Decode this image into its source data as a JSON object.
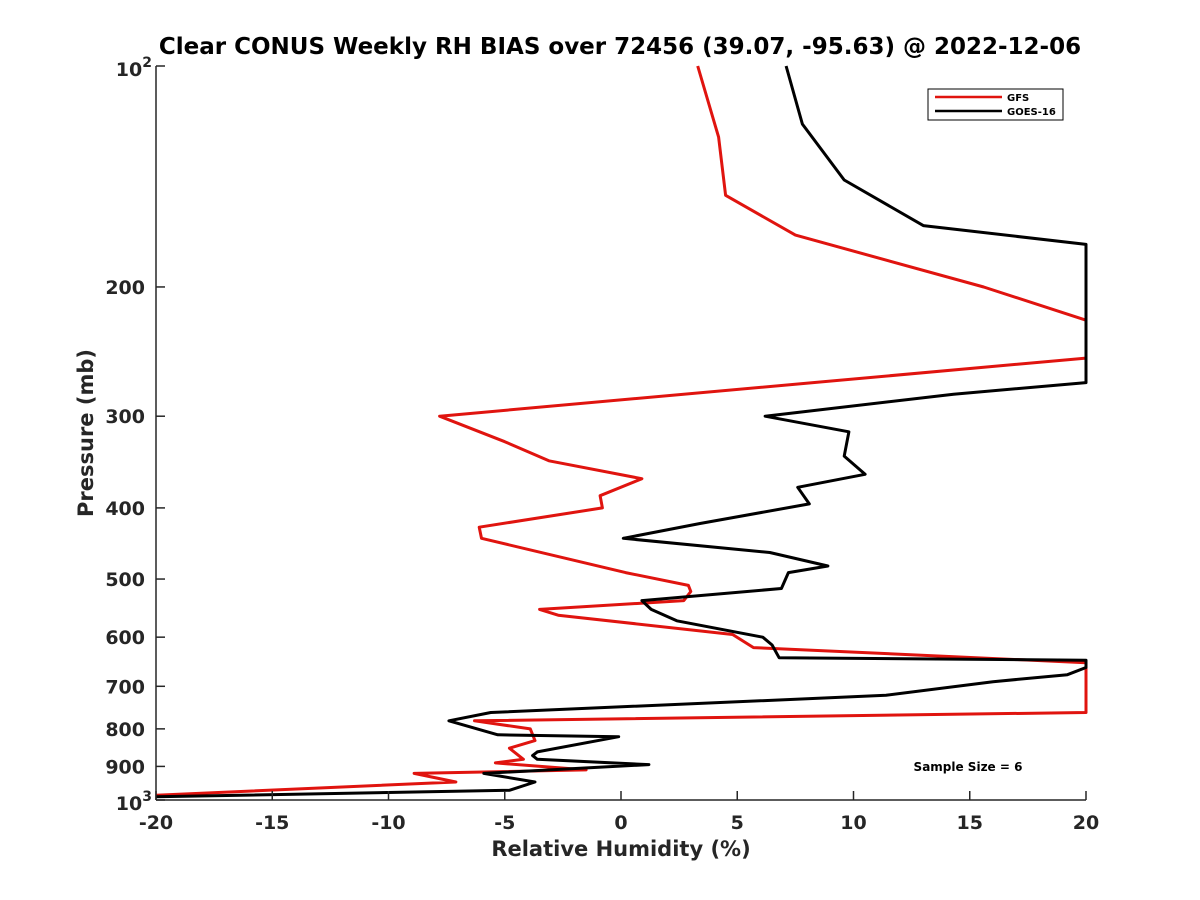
{
  "chart_data": {
    "type": "line",
    "title": "Clear CONUS Weekly RH BIAS over 72456 (39.07, -95.63) @ 2022-12-06",
    "xlabel": "Relative Humidity (%)",
    "ylabel": "Pressure (mb)",
    "xlim": [
      -20,
      20
    ],
    "ylim": [
      100,
      1000
    ],
    "yscale": "log",
    "y_reversed": true,
    "grid": false,
    "legend_position": "top-right",
    "x_ticks": [
      -20,
      -15,
      -10,
      -5,
      0,
      5,
      10,
      15,
      20
    ],
    "x_tick_labels": [
      "-20",
      "-15",
      "-10",
      "-5",
      "0",
      "5",
      "10",
      "15",
      "20"
    ],
    "y_ticks": [
      100,
      200,
      300,
      400,
      500,
      600,
      700,
      800,
      900,
      1000
    ],
    "y_tick_labels": [
      {
        "value": 100,
        "base": "10",
        "exp": "2"
      },
      {
        "value": 200,
        "base": "200",
        "exp": ""
      },
      {
        "value": 300,
        "base": "300",
        "exp": ""
      },
      {
        "value": 400,
        "base": "400",
        "exp": ""
      },
      {
        "value": 500,
        "base": "500",
        "exp": ""
      },
      {
        "value": 600,
        "base": "600",
        "exp": ""
      },
      {
        "value": 700,
        "base": "700",
        "exp": ""
      },
      {
        "value": 800,
        "base": "800",
        "exp": ""
      },
      {
        "value": 900,
        "base": "900",
        "exp": ""
      },
      {
        "value": 1000,
        "base": "10",
        "exp": "3"
      }
    ],
    "annotation": "Sample Size = 6",
    "series": [
      {
        "name": "GFS",
        "color": "#e0140f",
        "x": [
          3.3,
          4.2,
          4.5,
          7.5,
          15.6,
          20,
          20,
          -7.8,
          -5,
          -3.1,
          0.9,
          -0.9,
          -0.8,
          -6.1,
          -6,
          0.2,
          2.9,
          3.0,
          2.7,
          -3.5,
          -2.7,
          4.8,
          5.7,
          20,
          20,
          -6.3,
          -3.9,
          -3.7,
          -4.8,
          -4.2,
          -5.4,
          -1.5,
          -8.9,
          -7.1,
          -20
        ],
        "y": [
          100,
          125,
          150,
          170,
          200,
          222,
          250,
          300,
          325,
          345,
          365,
          385,
          400,
          425,
          440,
          490,
          510,
          520,
          535,
          550,
          560,
          595,
          620,
          650,
          760,
          780,
          800,
          830,
          850,
          880,
          890,
          910,
          920,
          945,
          985
        ]
      },
      {
        "name": "GOES-16",
        "color": "#000000",
        "x": [
          7.1,
          7.8,
          9.6,
          13,
          20,
          20,
          14.3,
          6.2,
          9.8,
          9.6,
          10.5,
          7.6,
          8.1,
          3.4,
          0.1,
          6.4,
          8.9,
          7.2,
          6.9,
          0.9,
          1.3,
          2.4,
          6.1,
          6.5,
          6.8,
          20,
          20,
          19.2,
          16,
          11.4,
          -5.6,
          -7.4,
          -5.3,
          -0.1,
          -3.6,
          -3.8,
          -3.6,
          1.2,
          -5.9,
          -3.7,
          -4.8,
          -20
        ],
        "y": [
          100,
          120,
          143,
          165,
          175,
          270,
          280,
          300,
          315,
          340,
          360,
          375,
          395,
          420,
          440,
          460,
          480,
          490,
          515,
          535,
          550,
          570,
          600,
          615,
          640,
          645,
          660,
          675,
          690,
          720,
          760,
          780,
          815,
          820,
          860,
          870,
          880,
          895,
          920,
          945,
          970,
          990
        ]
      }
    ]
  }
}
